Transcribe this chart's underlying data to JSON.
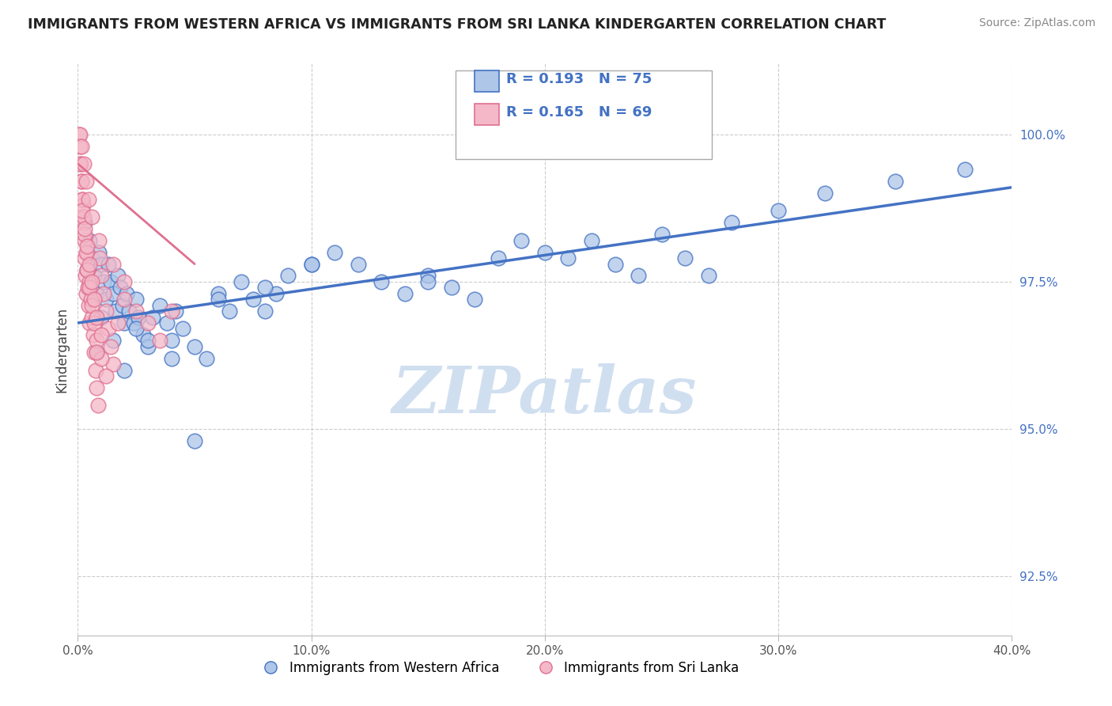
{
  "title": "IMMIGRANTS FROM WESTERN AFRICA VS IMMIGRANTS FROM SRI LANKA KINDERGARTEN CORRELATION CHART",
  "source": "Source: ZipAtlas.com",
  "ylabel": "Kindergarten",
  "x_min": 0.0,
  "x_max": 40.0,
  "y_min": 91.5,
  "y_max": 101.2,
  "y_ticks": [
    92.5,
    95.0,
    97.5,
    100.0
  ],
  "y_tick_labels": [
    "92.5%",
    "95.0%",
    "97.5%",
    "100.0%"
  ],
  "x_ticks": [
    0,
    10,
    20,
    30,
    40
  ],
  "x_tick_labels": [
    "0.0%",
    "10.0%",
    "20.0%",
    "30.0%",
    "40.0%"
  ],
  "legend_line1": "R = 0.193   N = 75",
  "legend_line2": "R = 0.165   N = 69",
  "label_blue": "Immigrants from Western Africa",
  "label_pink": "Immigrants from Sri Lanka",
  "color_blue_fill": "#aec6e8",
  "color_blue_edge": "#4472c4",
  "color_pink_fill": "#f4b8c8",
  "color_pink_edge": "#e07090",
  "color_blue_line": "#4472c4",
  "color_pink_line": "#e07090",
  "watermark": "ZIPatlas",
  "watermark_color": "#d0dff0",
  "blue_scatter_x": [
    0.3,
    0.5,
    0.6,
    0.7,
    0.8,
    0.9,
    1.0,
    1.1,
    1.2,
    1.3,
    1.4,
    1.5,
    1.6,
    1.7,
    1.8,
    1.9,
    2.0,
    2.1,
    2.2,
    2.4,
    2.5,
    2.6,
    2.8,
    3.0,
    3.2,
    3.5,
    3.8,
    4.0,
    4.2,
    4.5,
    5.0,
    5.5,
    6.0,
    6.5,
    7.0,
    7.5,
    8.0,
    8.5,
    9.0,
    10.0,
    11.0,
    12.0,
    13.0,
    14.0,
    15.0,
    16.0,
    17.0,
    18.0,
    19.0,
    20.0,
    21.0,
    22.0,
    23.0,
    24.0,
    25.0,
    26.0,
    27.0,
    28.0,
    30.0,
    32.0,
    35.0,
    38.0,
    0.4,
    0.8,
    1.0,
    1.5,
    2.0,
    2.5,
    3.0,
    4.0,
    5.0,
    6.0,
    8.0,
    10.0,
    15.0
  ],
  "blue_scatter_y": [
    98.5,
    98.2,
    97.9,
    97.6,
    97.3,
    98.0,
    97.8,
    97.5,
    97.2,
    97.8,
    97.5,
    97.3,
    97.0,
    97.6,
    97.4,
    97.1,
    96.8,
    97.3,
    97.0,
    96.8,
    97.2,
    96.9,
    96.6,
    96.4,
    96.9,
    97.1,
    96.8,
    96.5,
    97.0,
    96.7,
    96.4,
    96.2,
    97.3,
    97.0,
    97.5,
    97.2,
    97.0,
    97.3,
    97.6,
    97.8,
    98.0,
    97.8,
    97.5,
    97.3,
    97.6,
    97.4,
    97.2,
    97.9,
    98.2,
    98.0,
    97.9,
    98.2,
    97.8,
    97.6,
    98.3,
    97.9,
    97.6,
    98.5,
    98.7,
    99.0,
    99.2,
    99.4,
    97.7,
    96.3,
    96.9,
    96.5,
    96.0,
    96.7,
    96.5,
    96.2,
    94.8,
    97.2,
    97.4,
    97.8,
    97.5
  ],
  "pink_scatter_x": [
    0.05,
    0.08,
    0.1,
    0.12,
    0.15,
    0.18,
    0.2,
    0.22,
    0.25,
    0.28,
    0.3,
    0.33,
    0.35,
    0.38,
    0.4,
    0.42,
    0.45,
    0.48,
    0.5,
    0.55,
    0.6,
    0.65,
    0.7,
    0.75,
    0.8,
    0.85,
    0.9,
    0.95,
    1.0,
    1.1,
    1.2,
    1.3,
    1.4,
    1.5,
    1.7,
    2.0,
    2.5,
    3.0,
    3.5,
    4.0,
    0.1,
    0.15,
    0.2,
    0.25,
    0.3,
    0.35,
    0.4,
    0.5,
    0.6,
    0.7,
    0.8,
    1.0,
    1.2,
    1.5,
    2.0,
    0.2,
    0.3,
    0.4,
    0.5,
    0.6,
    0.7,
    0.8,
    1.0,
    0.15,
    0.25,
    0.35,
    0.45,
    0.6,
    0.8
  ],
  "pink_scatter_y": [
    100.0,
    100.0,
    99.8,
    99.5,
    99.2,
    98.9,
    98.6,
    98.8,
    98.5,
    98.2,
    97.9,
    97.6,
    97.3,
    98.0,
    97.7,
    97.4,
    97.1,
    96.8,
    97.5,
    97.2,
    96.9,
    96.6,
    96.3,
    96.0,
    95.7,
    95.4,
    98.2,
    97.9,
    97.6,
    97.3,
    97.0,
    96.7,
    96.4,
    96.1,
    96.8,
    97.2,
    97.0,
    96.8,
    96.5,
    97.0,
    99.5,
    99.2,
    98.9,
    98.6,
    98.3,
    98.0,
    97.7,
    97.4,
    97.1,
    96.8,
    96.5,
    96.2,
    95.9,
    97.8,
    97.5,
    98.7,
    98.4,
    98.1,
    97.8,
    97.5,
    97.2,
    96.9,
    96.6,
    99.8,
    99.5,
    99.2,
    98.9,
    98.6,
    96.3
  ],
  "blue_trend_x0": 0.0,
  "blue_trend_x1": 40.0,
  "blue_trend_y0": 96.8,
  "blue_trend_y1": 99.1,
  "pink_trend_x0": 0.0,
  "pink_trend_x1": 5.0,
  "pink_trend_y0": 99.5,
  "pink_trend_y1": 97.8
}
